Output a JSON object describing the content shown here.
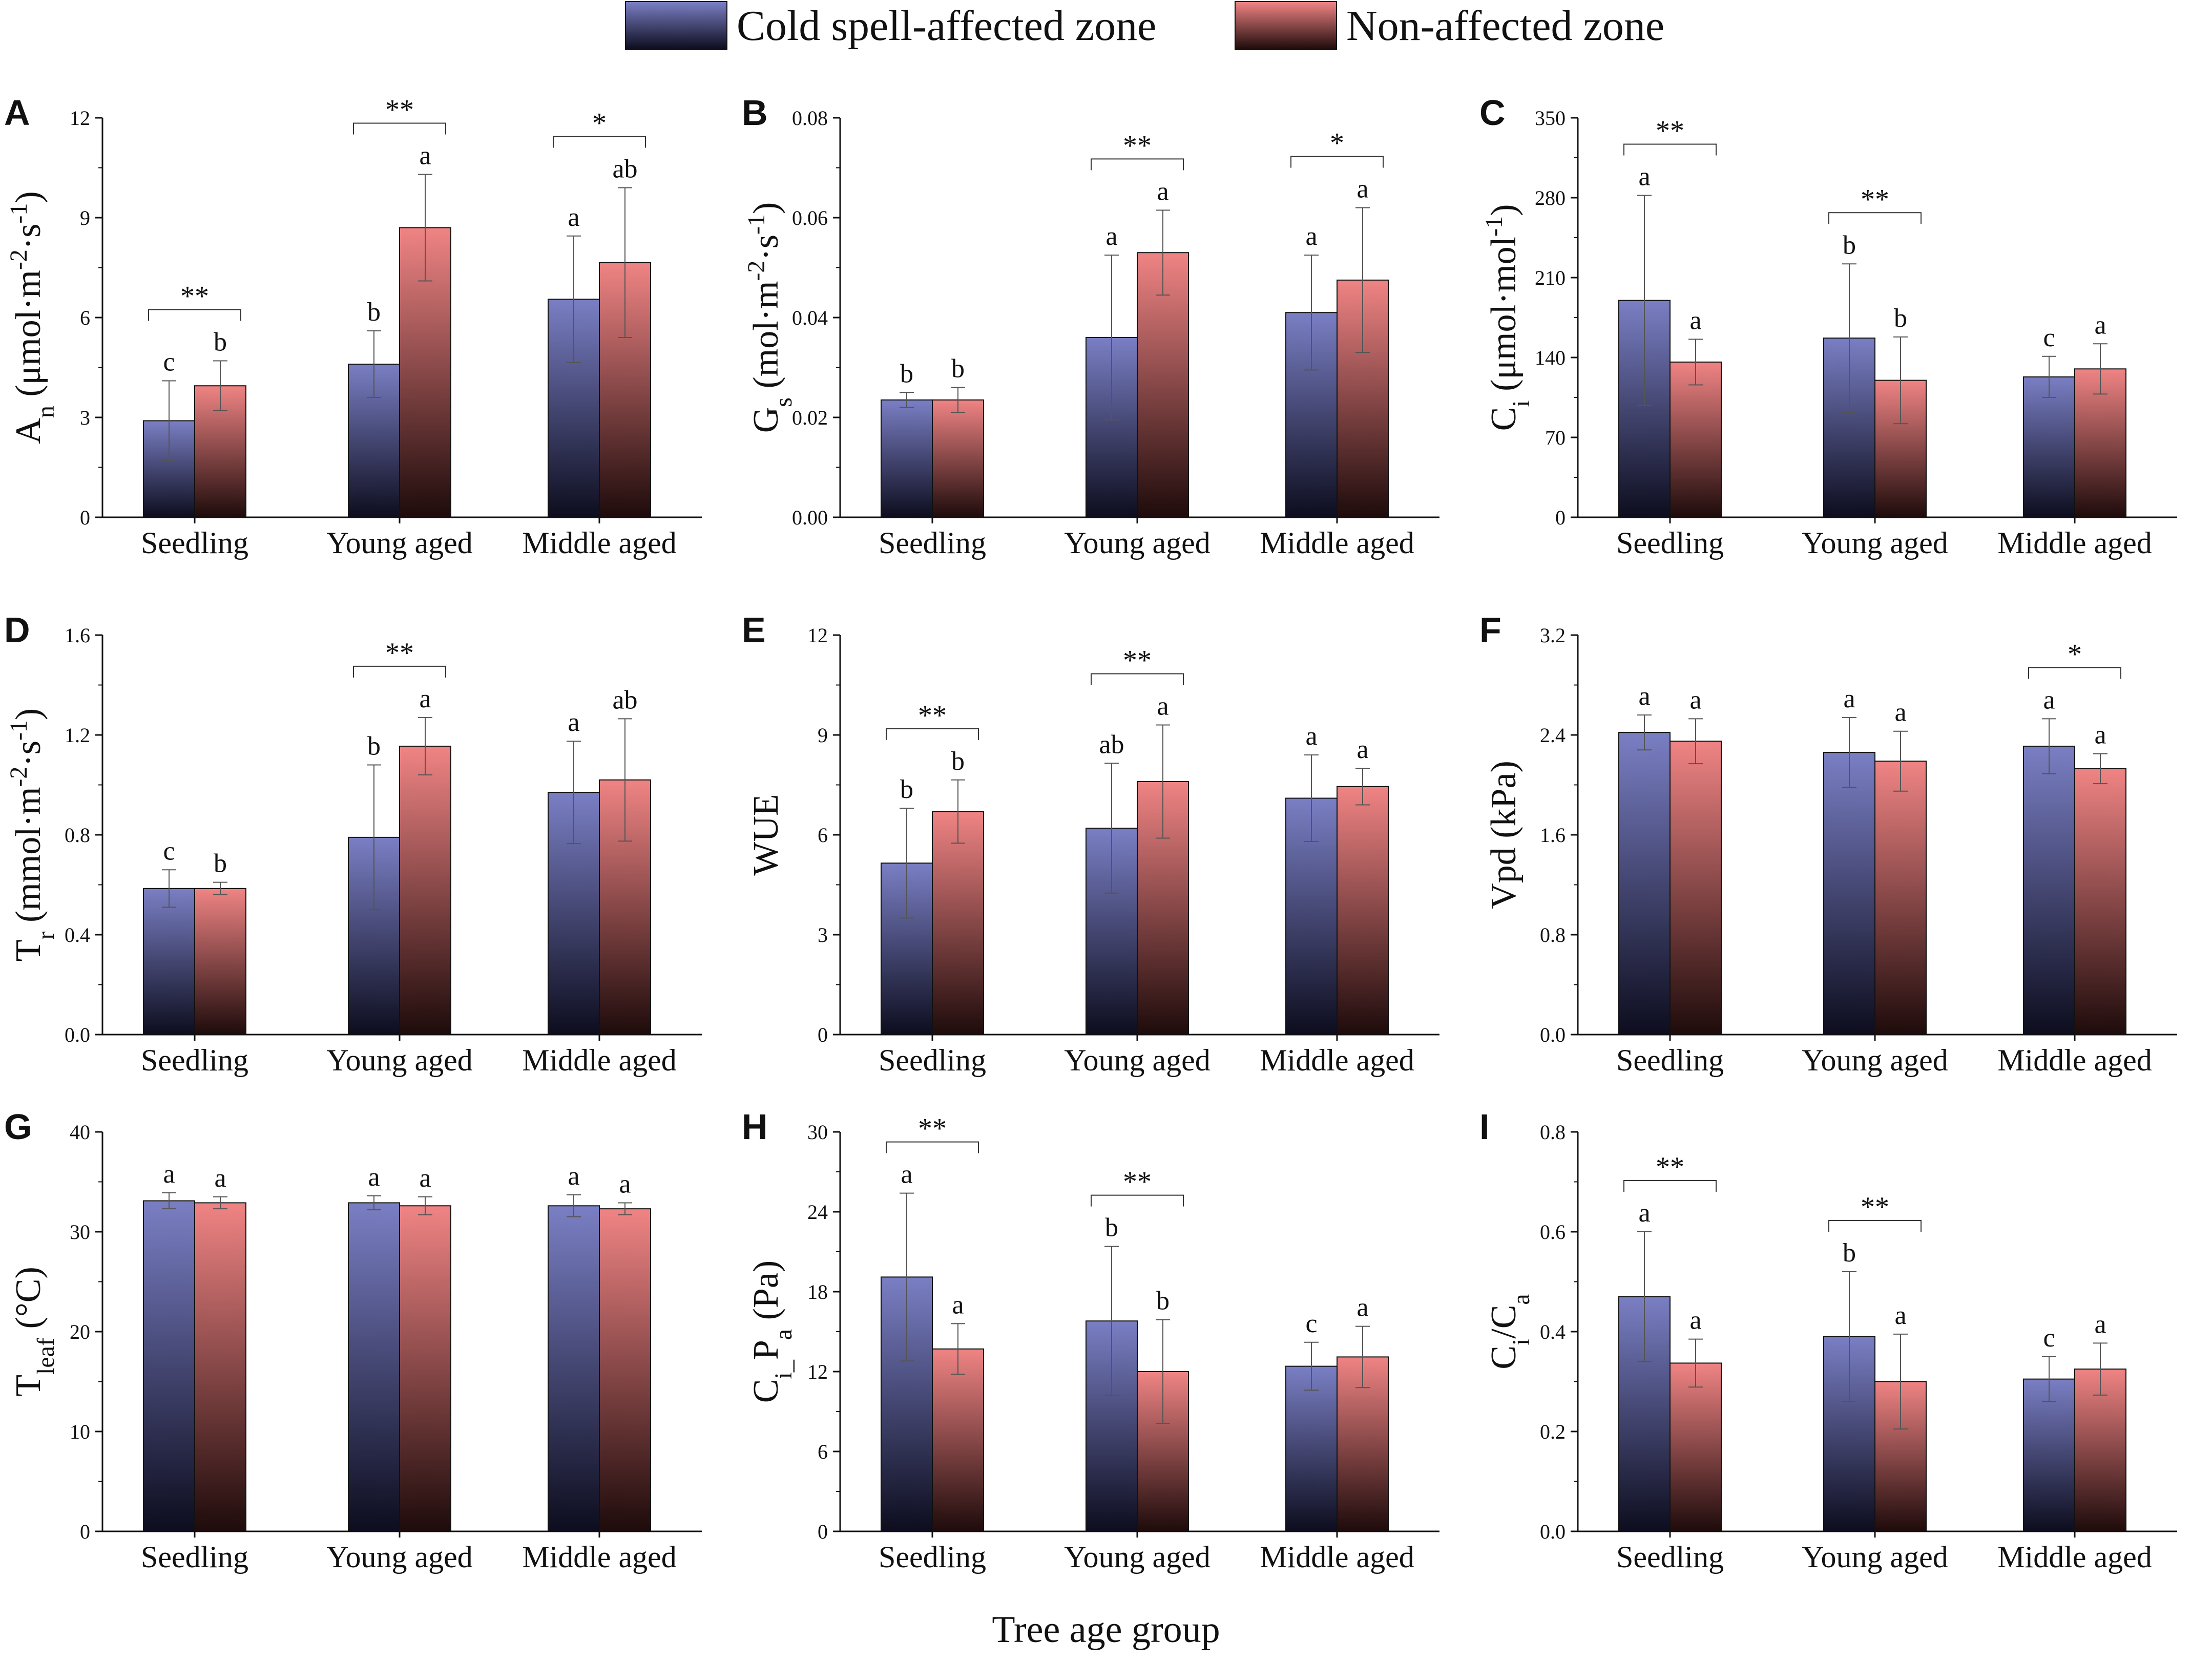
{
  "legend": {
    "items": [
      {
        "label": "Cold spell-affected zone",
        "top_color": "#7a7fc4",
        "bottom_color": "#0d0d1e"
      },
      {
        "label": "Non-affected zone",
        "top_color": "#f08484",
        "bottom_color": "#1e0b0b"
      }
    ]
  },
  "xlabel": "Tree age group",
  "chart_data": [
    {
      "id": "A",
      "type": "bar",
      "ylabel_parts": [
        [
          "A",
          ""
        ],
        [
          "n",
          "sub"
        ],
        [
          " (μmol·m",
          ""
        ],
        [
          "-2",
          "sup"
        ],
        [
          "·s",
          ""
        ],
        [
          "-1",
          "sup"
        ],
        [
          ")",
          ""
        ]
      ],
      "ylim": [
        0,
        12
      ],
      "yticks": [
        0,
        3,
        6,
        9,
        12
      ],
      "ytick_labels": [
        "0",
        "3",
        "6",
        "9",
        "12"
      ],
      "categories": [
        "Seedling",
        "Young aged",
        "Middle aged"
      ],
      "series": [
        {
          "name": "Cold spell-affected zone",
          "values": [
            2.9,
            4.6,
            6.55
          ],
          "errors": [
            1.2,
            1.0,
            1.9
          ],
          "letters": [
            "c",
            "b",
            "a"
          ]
        },
        {
          "name": "Non-affected zone",
          "values": [
            3.95,
            8.7,
            7.65
          ],
          "errors": [
            0.75,
            1.6,
            2.25
          ],
          "letters": [
            "b",
            "a",
            "ab"
          ]
        }
      ],
      "significance": [
        "**",
        "**",
        "*"
      ]
    },
    {
      "id": "B",
      "type": "bar",
      "ylabel_parts": [
        [
          "G",
          ""
        ],
        [
          "s",
          "sub"
        ],
        [
          " (mol·m",
          ""
        ],
        [
          "-2",
          "sup"
        ],
        [
          "·s",
          ""
        ],
        [
          "-1",
          "sup"
        ],
        [
          ")",
          ""
        ]
      ],
      "ylim": [
        0,
        0.08
      ],
      "yticks": [
        0,
        0.02,
        0.04,
        0.06,
        0.08
      ],
      "ytick_labels": [
        "0.00",
        "0.02",
        "0.04",
        "0.06",
        "0.08"
      ],
      "categories": [
        "Seedling",
        "Young aged",
        "Middle aged"
      ],
      "series": [
        {
          "name": "Cold spell-affected zone",
          "values": [
            0.0235,
            0.036,
            0.041
          ],
          "errors": [
            0.0015,
            0.0165,
            0.0115
          ],
          "letters": [
            "b",
            "a",
            "a"
          ]
        },
        {
          "name": "Non-affected zone",
          "values": [
            0.0235,
            0.053,
            0.0475
          ],
          "errors": [
            0.0025,
            0.0085,
            0.0145
          ],
          "letters": [
            "b",
            "a",
            "a"
          ]
        }
      ],
      "significance": [
        "",
        "**",
        "*"
      ]
    },
    {
      "id": "C",
      "type": "bar",
      "ylabel_parts": [
        [
          "C",
          ""
        ],
        [
          "i",
          "sub"
        ],
        [
          " (μmol·mol",
          ""
        ],
        [
          "-1",
          "sup"
        ],
        [
          ")",
          ""
        ]
      ],
      "ylim": [
        0,
        350
      ],
      "yticks": [
        0,
        70,
        140,
        210,
        280,
        350
      ],
      "ytick_labels": [
        "0",
        "70",
        "140",
        "210",
        "280",
        "350"
      ],
      "categories": [
        "Seedling",
        "Young aged",
        "Middle aged"
      ],
      "series": [
        {
          "name": "Cold spell-affected zone",
          "values": [
            190,
            157,
            123
          ],
          "errors": [
            92,
            65,
            18
          ],
          "letters": [
            "a",
            "b",
            "c"
          ]
        },
        {
          "name": "Non-affected zone",
          "values": [
            136,
            120,
            130
          ],
          "errors": [
            20,
            38,
            22
          ],
          "letters": [
            "a",
            "b",
            "a"
          ]
        }
      ],
      "significance": [
        "**",
        "**",
        ""
      ]
    },
    {
      "id": "D",
      "type": "bar",
      "ylabel_parts": [
        [
          "T",
          ""
        ],
        [
          "r",
          "sub"
        ],
        [
          " (mmol·m",
          ""
        ],
        [
          "-2",
          "sup"
        ],
        [
          "·s",
          ""
        ],
        [
          "-1",
          "sup"
        ],
        [
          ")",
          ""
        ]
      ],
      "ylim": [
        0,
        1.6
      ],
      "yticks": [
        0,
        0.4,
        0.8,
        1.2,
        1.6
      ],
      "ytick_labels": [
        "0.0",
        "0.4",
        "0.8",
        "1.2",
        "1.6"
      ],
      "categories": [
        "Seedling",
        "Young aged",
        "Middle aged"
      ],
      "series": [
        {
          "name": "Cold spell-affected zone",
          "values": [
            0.585,
            0.79,
            0.97
          ],
          "errors": [
            0.075,
            0.29,
            0.205
          ],
          "letters": [
            "c",
            "b",
            "a"
          ]
        },
        {
          "name": "Non-affected zone",
          "values": [
            0.585,
            1.155,
            1.02
          ],
          "errors": [
            0.025,
            0.115,
            0.245
          ],
          "letters": [
            "b",
            "a",
            "ab"
          ]
        }
      ],
      "significance": [
        "",
        "**",
        ""
      ]
    },
    {
      "id": "E",
      "type": "bar",
      "ylabel_parts": [
        [
          "WUE",
          ""
        ]
      ],
      "ylim": [
        0,
        12
      ],
      "yticks": [
        0,
        3,
        6,
        9,
        12
      ],
      "ytick_labels": [
        "0",
        "3",
        "6",
        "9",
        "12"
      ],
      "categories": [
        "Seedling",
        "Young aged",
        "Middle aged"
      ],
      "series": [
        {
          "name": "Cold spell-affected zone",
          "values": [
            5.15,
            6.2,
            7.1
          ],
          "errors": [
            1.65,
            1.95,
            1.3
          ],
          "letters": [
            "b",
            "ab",
            "a"
          ]
        },
        {
          "name": "Non-affected zone",
          "values": [
            6.7,
            7.6,
            7.45
          ],
          "errors": [
            0.95,
            1.7,
            0.55
          ],
          "letters": [
            "b",
            "a",
            "a"
          ]
        }
      ],
      "significance": [
        "**",
        "**",
        ""
      ]
    },
    {
      "id": "F",
      "type": "bar",
      "ylabel_parts": [
        [
          "Vpd (kPa)",
          ""
        ]
      ],
      "ylim": [
        0,
        3.2
      ],
      "yticks": [
        0,
        0.8,
        1.6,
        2.4,
        3.2
      ],
      "ytick_labels": [
        "0.0",
        "0.8",
        "1.6",
        "2.4",
        "3.2"
      ],
      "categories": [
        "Seedling",
        "Young aged",
        "Middle aged"
      ],
      "series": [
        {
          "name": "Cold spell-affected zone",
          "values": [
            2.42,
            2.26,
            2.31
          ],
          "errors": [
            0.14,
            0.28,
            0.22
          ],
          "letters": [
            "a",
            "a",
            "a"
          ]
        },
        {
          "name": "Non-affected zone",
          "values": [
            2.35,
            2.19,
            2.13
          ],
          "errors": [
            0.18,
            0.24,
            0.12
          ],
          "letters": [
            "a",
            "a",
            "a"
          ]
        }
      ],
      "significance": [
        "",
        "",
        "*"
      ]
    },
    {
      "id": "G",
      "type": "bar",
      "ylabel_parts": [
        [
          "T",
          ""
        ],
        [
          "leaf",
          "sub"
        ],
        [
          " (°C)",
          ""
        ]
      ],
      "ylim": [
        0,
        40
      ],
      "yticks": [
        0,
        10,
        20,
        30,
        40
      ],
      "ytick_labels": [
        "0",
        "10",
        "20",
        "30",
        "40"
      ],
      "categories": [
        "Seedling",
        "Young aged",
        "Middle aged"
      ],
      "series": [
        {
          "name": "Cold spell-affected zone",
          "values": [
            33.1,
            32.9,
            32.6
          ],
          "errors": [
            0.8,
            0.7,
            1.1
          ],
          "letters": [
            "a",
            "a",
            "a"
          ]
        },
        {
          "name": "Non-affected zone",
          "values": [
            32.9,
            32.6,
            32.3
          ],
          "errors": [
            0.6,
            0.9,
            0.6
          ],
          "letters": [
            "a",
            "a",
            "a"
          ]
        }
      ],
      "significance": [
        "",
        "",
        ""
      ]
    },
    {
      "id": "H",
      "type": "bar",
      "ylabel_parts": [
        [
          "C",
          ""
        ],
        [
          "i_",
          "sub"
        ],
        [
          "P",
          ""
        ],
        [
          "a",
          "sub"
        ],
        [
          " (Pa)",
          ""
        ]
      ],
      "ylim": [
        0,
        30
      ],
      "yticks": [
        0,
        6,
        12,
        18,
        24,
        30
      ],
      "ytick_labels": [
        "0",
        "6",
        "12",
        "18",
        "24",
        "30"
      ],
      "categories": [
        "Seedling",
        "Young aged",
        "Middle aged"
      ],
      "series": [
        {
          "name": "Cold spell-affected zone",
          "values": [
            19.1,
            15.8,
            12.4
          ],
          "errors": [
            6.3,
            5.6,
            1.8
          ],
          "letters": [
            "a",
            "b",
            "c"
          ]
        },
        {
          "name": "Non-affected zone",
          "values": [
            13.7,
            12.0,
            13.1
          ],
          "errors": [
            1.9,
            3.9,
            2.3
          ],
          "letters": [
            "a",
            "b",
            "a"
          ]
        }
      ],
      "significance": [
        "**",
        "**",
        ""
      ]
    },
    {
      "id": "I",
      "type": "bar",
      "ylabel_parts": [
        [
          "C",
          ""
        ],
        [
          "i",
          "sub"
        ],
        [
          "/C",
          ""
        ],
        [
          "a",
          "sub"
        ]
      ],
      "ylim": [
        0,
        0.8
      ],
      "yticks": [
        0,
        0.2,
        0.4,
        0.6,
        0.8
      ],
      "ytick_labels": [
        "0.0",
        "0.2",
        "0.4",
        "0.6",
        "0.8"
      ],
      "categories": [
        "Seedling",
        "Young aged",
        "Middle aged"
      ],
      "series": [
        {
          "name": "Cold spell-affected zone",
          "values": [
            0.47,
            0.39,
            0.305
          ],
          "errors": [
            0.13,
            0.13,
            0.045
          ],
          "letters": [
            "a",
            "b",
            "c"
          ]
        },
        {
          "name": "Non-affected zone",
          "values": [
            0.337,
            0.3,
            0.325
          ],
          "errors": [
            0.048,
            0.095,
            0.052
          ],
          "letters": [
            "a",
            "a",
            "a"
          ]
        }
      ],
      "significance": [
        "**",
        "**",
        ""
      ]
    }
  ]
}
